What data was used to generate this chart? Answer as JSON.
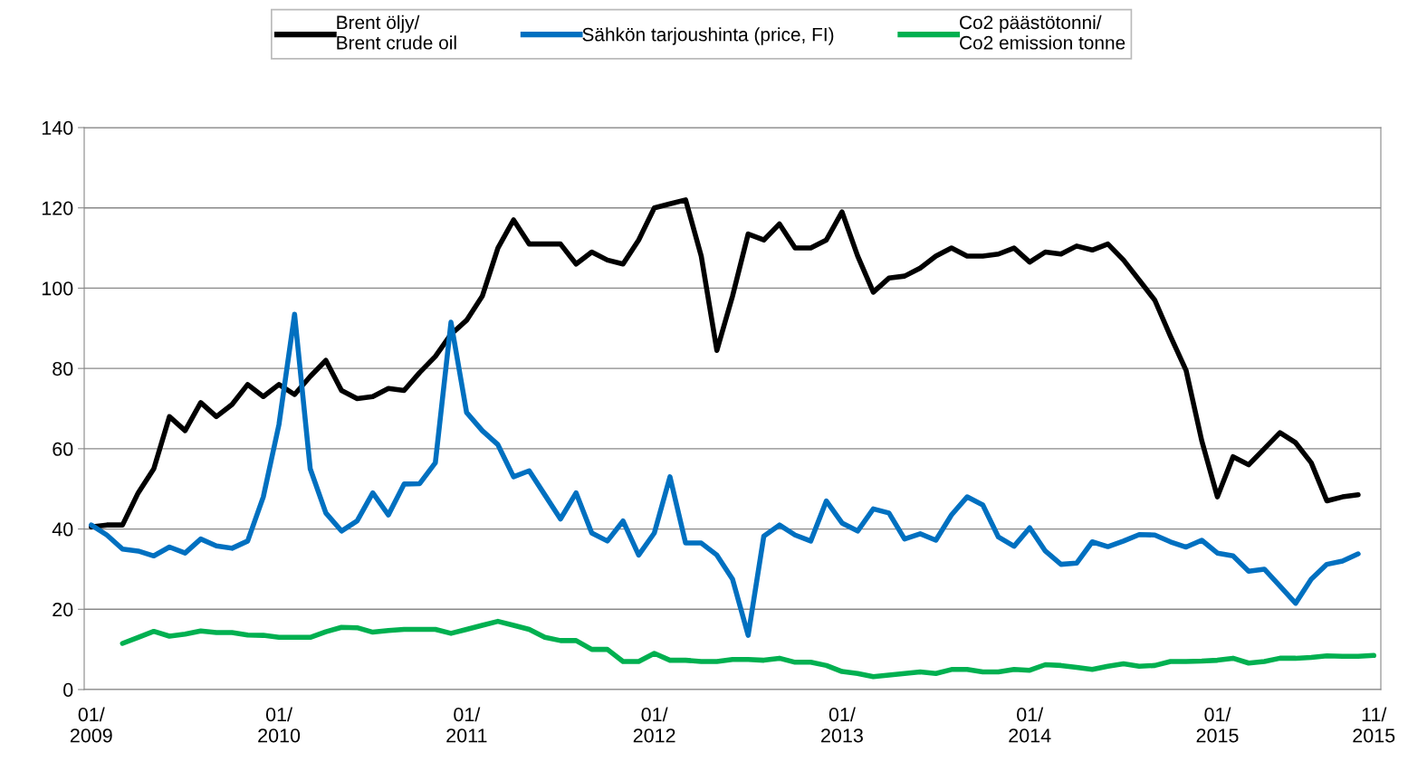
{
  "chart_data": {
    "type": "line",
    "categories": [
      "01/\n2009",
      null,
      null,
      null,
      null,
      null,
      null,
      null,
      null,
      null,
      null,
      null,
      "01/\n2010",
      null,
      null,
      null,
      null,
      null,
      null,
      null,
      null,
      null,
      null,
      null,
      "01/\n2011",
      null,
      null,
      null,
      null,
      null,
      null,
      null,
      null,
      null,
      null,
      null,
      "01/\n2012",
      null,
      null,
      null,
      null,
      null,
      null,
      null,
      null,
      null,
      null,
      null,
      "01/\n2013",
      null,
      null,
      null,
      null,
      null,
      null,
      null,
      null,
      null,
      null,
      null,
      "01/\n2014",
      null,
      null,
      null,
      null,
      null,
      null,
      null,
      null,
      null,
      null,
      null,
      "01/\n2015",
      null,
      null,
      null,
      null,
      null,
      null,
      null,
      null,
      null,
      "11/\n2015"
    ],
    "series": [
      {
        "name": "Brent öljy/\nBrent crude oil",
        "color": "#000000",
        "values": [
          40.5,
          41,
          41,
          49,
          55,
          68,
          64.5,
          71.5,
          68,
          71,
          76,
          73,
          76,
          73.5,
          78,
          82,
          74.5,
          72.5,
          73,
          75,
          74.5,
          79,
          83,
          88.5,
          92,
          98,
          110,
          117,
          111,
          111,
          111,
          106,
          109,
          107,
          106,
          112,
          120,
          121,
          122,
          108,
          84.5,
          98,
          113.5,
          112,
          116,
          110,
          110,
          112,
          119,
          108,
          99,
          102.5,
          103,
          105,
          108,
          110,
          108,
          108,
          108.5,
          110,
          106.5,
          109,
          108.5,
          110.5,
          109.5,
          111,
          107,
          102,
          97,
          88,
          79.5,
          62,
          48,
          58,
          56,
          60,
          64,
          61.5,
          56.5,
          47,
          48,
          48.5,
          null
        ]
      },
      {
        "name": "Sähkön tarjoushinta (price, FI)",
        "color": "#0070c0",
        "values": [
          41,
          38.5,
          35,
          34.5,
          33.3,
          35.5,
          34,
          37.5,
          35.8,
          35.2,
          37,
          48,
          66,
          93.5,
          55,
          44,
          39.5,
          42,
          49,
          43.5,
          51.2,
          51.3,
          56.5,
          91.5,
          69,
          64.5,
          61,
          53,
          54.5,
          48.5,
          42.5,
          49,
          39,
          37,
          42,
          33.5,
          39,
          53,
          36.5,
          36.5,
          33.5,
          27.5,
          13.5,
          38.2,
          41,
          38.5,
          37,
          47,
          41.5,
          39.5,
          45,
          44,
          37.5,
          38.8,
          37.2,
          43.5,
          48,
          46,
          38,
          35.7,
          40.3,
          34.5,
          31.2,
          31.5,
          36.8,
          35.6,
          37,
          38.6,
          38.5,
          36.8,
          35.5,
          37.2,
          34,
          33.3,
          29.5,
          30,
          25.8,
          21.5,
          27.5,
          31.2,
          32,
          33.8,
          null
        ]
      },
      {
        "name": "Co2 päästötonni/\nCo2 emission tonne",
        "color": "#00b050",
        "values": [
          null,
          null,
          11.5,
          13,
          14.5,
          13.3,
          13.8,
          14.6,
          14.2,
          14.2,
          13.6,
          13.5,
          13,
          13,
          13,
          14.4,
          15.5,
          15.4,
          14.3,
          14.7,
          15,
          15,
          15,
          14,
          15,
          16,
          17,
          16,
          15,
          13,
          12.2,
          12.2,
          10,
          10,
          7,
          7,
          9,
          7.3,
          7.3,
          7,
          7,
          7.5,
          7.5,
          7.3,
          7.8,
          6.8,
          6.8,
          6,
          4.5,
          4,
          3.2,
          3.6,
          4,
          4.4,
          4,
          5,
          5,
          4.4,
          4.4,
          5,
          4.8,
          6.2,
          6,
          5.5,
          5,
          5.8,
          6.4,
          5.8,
          6,
          7,
          7,
          7.1,
          7.3,
          7.8,
          6.6,
          7,
          7.8,
          7.8,
          8,
          8.4,
          8.3,
          8.3,
          8.5
        ]
      }
    ],
    "ylim": [
      0,
      140
    ],
    "yticks": [
      0,
      20,
      40,
      60,
      80,
      100,
      120,
      140
    ],
    "grid": "y",
    "legend": "top",
    "marker": "none",
    "line_style": "solid"
  }
}
